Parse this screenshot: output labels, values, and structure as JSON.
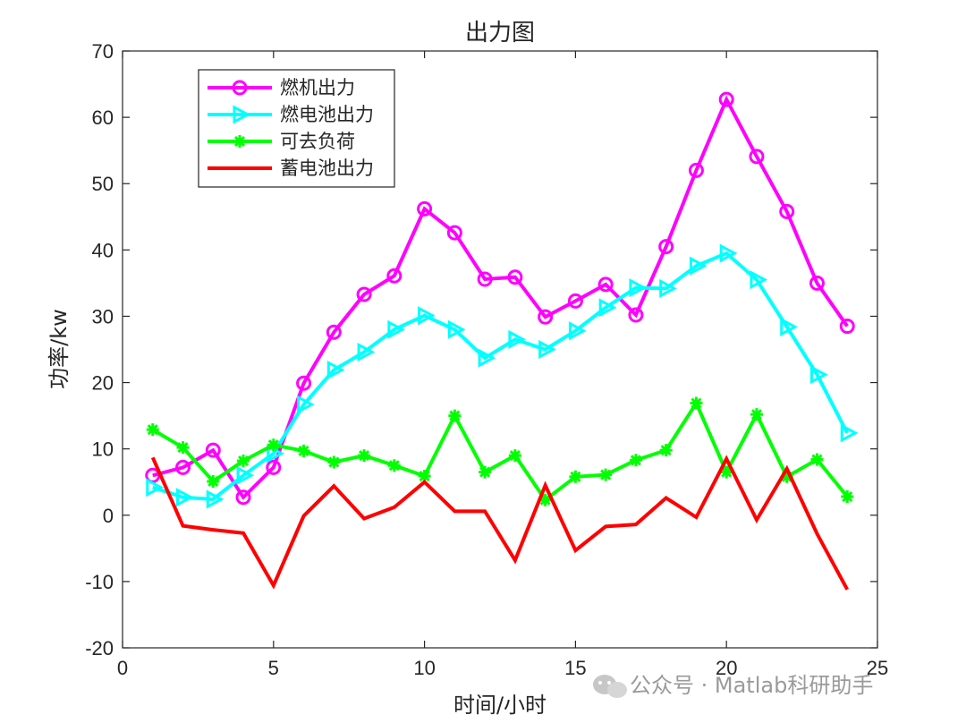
{
  "chart_data": {
    "type": "line",
    "title": "出力图",
    "xlabel": "时间/小时",
    "ylabel": "功率/kw",
    "xlim": [
      0,
      25
    ],
    "ylim": [
      -20,
      70
    ],
    "xticks": [
      0,
      5,
      10,
      15,
      20,
      25
    ],
    "yticks": [
      -20,
      -10,
      0,
      10,
      20,
      30,
      40,
      50,
      60,
      70
    ],
    "xtick_labels": [
      "0",
      "5",
      "10",
      "15",
      "20",
      "25"
    ],
    "ytick_labels": [
      "-20",
      "-10",
      "0",
      "10",
      "20",
      "30",
      "40",
      "50",
      "60",
      "70"
    ],
    "grid": false,
    "legend_position": "top-left",
    "x": [
      1,
      2,
      3,
      4,
      5,
      6,
      7,
      8,
      9,
      10,
      11,
      12,
      13,
      14,
      15,
      16,
      17,
      18,
      19,
      20,
      21,
      22,
      23,
      24
    ],
    "series": [
      {
        "name": "燃机出力",
        "color": "#ff00ff",
        "marker": "circle",
        "values": [
          6.0,
          7.2,
          9.8,
          2.7,
          7.2,
          19.9,
          27.6,
          33.3,
          36.1,
          46.2,
          42.6,
          35.6,
          35.9,
          29.9,
          32.3,
          34.8,
          30.2,
          40.5,
          52.0,
          62.7,
          54.1,
          45.8,
          35.0,
          28.5
        ]
      },
      {
        "name": "燃电池出力",
        "color": "#00ffff",
        "marker": "triangle-right",
        "values": [
          4.2,
          2.7,
          2.4,
          6.0,
          9.3,
          16.7,
          21.9,
          24.6,
          28.0,
          30.1,
          28.0,
          23.7,
          26.5,
          25.0,
          27.8,
          31.3,
          34.3,
          34.2,
          37.6,
          39.5,
          35.5,
          28.4,
          21.2,
          12.4
        ]
      },
      {
        "name": "可去负荷",
        "color": "#00ff00",
        "marker": "asterisk",
        "values": [
          12.9,
          10.2,
          5.1,
          8.2,
          10.6,
          9.7,
          8.0,
          9.0,
          7.5,
          5.9,
          15.0,
          6.5,
          9.0,
          2.3,
          5.8,
          6.1,
          8.3,
          9.8,
          16.9,
          6.5,
          15.2,
          5.8,
          8.4,
          2.8
        ]
      },
      {
        "name": "蓄电池出力",
        "color": "#ff0000",
        "marker": "none",
        "values": [
          8.7,
          -1.6,
          -2.2,
          -2.7,
          -10.6,
          -0.1,
          4.4,
          -0.5,
          1.2,
          5.0,
          0.6,
          0.6,
          -6.8,
          4.5,
          -5.3,
          -1.7,
          -1.4,
          2.6,
          -0.3,
          8.5,
          -0.7,
          7.0,
          -2.8,
          -11.2
        ]
      }
    ]
  },
  "watermark": {
    "text": "公众号 · Matlab科研助手"
  }
}
